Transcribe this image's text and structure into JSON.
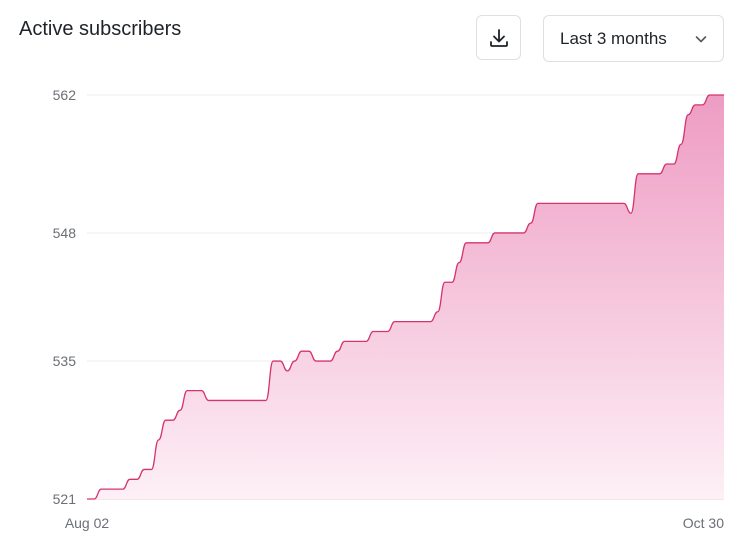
{
  "header": {
    "title": "Active subscribers",
    "download_icon": "download-icon",
    "range_select": {
      "value": "Last 3 months",
      "icon": "chevron-down-icon"
    }
  },
  "colors": {
    "line": "#d6336c",
    "fill_top": "#ee9cc3",
    "fill_bottom": "#fdf0f6",
    "grid": "#ececec",
    "tick": "#6b6f76"
  },
  "chart_data": {
    "type": "area",
    "title": "Active subscribers",
    "xlabel": "",
    "ylabel": "",
    "x_tick_labels": [
      "Aug 02",
      "Oct 30"
    ],
    "y_ticks": [
      521,
      535,
      548,
      562
    ],
    "ylim": [
      521,
      562
    ],
    "xlim": [
      "2023-08-02",
      "2023-10-30"
    ],
    "grid": true,
    "legend": "none",
    "series": [
      {
        "values": [
          {
            "x": "2023-08-02",
            "y": 521
          },
          {
            "x": "2023-08-03",
            "y": 521
          },
          {
            "x": "2023-08-04",
            "y": 522
          },
          {
            "x": "2023-08-05",
            "y": 522
          },
          {
            "x": "2023-08-06",
            "y": 522
          },
          {
            "x": "2023-08-07",
            "y": 522
          },
          {
            "x": "2023-08-08",
            "y": 523
          },
          {
            "x": "2023-08-09",
            "y": 523
          },
          {
            "x": "2023-08-10",
            "y": 524
          },
          {
            "x": "2023-08-11",
            "y": 524
          },
          {
            "x": "2023-08-12",
            "y": 527
          },
          {
            "x": "2023-08-13",
            "y": 529
          },
          {
            "x": "2023-08-14",
            "y": 529
          },
          {
            "x": "2023-08-15",
            "y": 530
          },
          {
            "x": "2023-08-16",
            "y": 532
          },
          {
            "x": "2023-08-17",
            "y": 532
          },
          {
            "x": "2023-08-18",
            "y": 532
          },
          {
            "x": "2023-08-19",
            "y": 531
          },
          {
            "x": "2023-08-20",
            "y": 531
          },
          {
            "x": "2023-08-21",
            "y": 531
          },
          {
            "x": "2023-08-22",
            "y": 531
          },
          {
            "x": "2023-08-23",
            "y": 531
          },
          {
            "x": "2023-08-24",
            "y": 531
          },
          {
            "x": "2023-08-25",
            "y": 531
          },
          {
            "x": "2023-08-26",
            "y": 531
          },
          {
            "x": "2023-08-27",
            "y": 531
          },
          {
            "x": "2023-08-28",
            "y": 535
          },
          {
            "x": "2023-08-29",
            "y": 535
          },
          {
            "x": "2023-08-30",
            "y": 534
          },
          {
            "x": "2023-08-31",
            "y": 535
          },
          {
            "x": "2023-09-01",
            "y": 536
          },
          {
            "x": "2023-09-02",
            "y": 536
          },
          {
            "x": "2023-09-03",
            "y": 535
          },
          {
            "x": "2023-09-04",
            "y": 535
          },
          {
            "x": "2023-09-05",
            "y": 535
          },
          {
            "x": "2023-09-06",
            "y": 536
          },
          {
            "x": "2023-09-07",
            "y": 537
          },
          {
            "x": "2023-09-08",
            "y": 537
          },
          {
            "x": "2023-09-09",
            "y": 537
          },
          {
            "x": "2023-09-10",
            "y": 537
          },
          {
            "x": "2023-09-11",
            "y": 538
          },
          {
            "x": "2023-09-12",
            "y": 538
          },
          {
            "x": "2023-09-13",
            "y": 538
          },
          {
            "x": "2023-09-14",
            "y": 539
          },
          {
            "x": "2023-09-15",
            "y": 539
          },
          {
            "x": "2023-09-16",
            "y": 539
          },
          {
            "x": "2023-09-17",
            "y": 539
          },
          {
            "x": "2023-09-18",
            "y": 539
          },
          {
            "x": "2023-09-19",
            "y": 539
          },
          {
            "x": "2023-09-20",
            "y": 540
          },
          {
            "x": "2023-09-21",
            "y": 543
          },
          {
            "x": "2023-09-22",
            "y": 543
          },
          {
            "x": "2023-09-23",
            "y": 545
          },
          {
            "x": "2023-09-24",
            "y": 547
          },
          {
            "x": "2023-09-25",
            "y": 547
          },
          {
            "x": "2023-09-26",
            "y": 547
          },
          {
            "x": "2023-09-27",
            "y": 547
          },
          {
            "x": "2023-09-28",
            "y": 548
          },
          {
            "x": "2023-09-29",
            "y": 548
          },
          {
            "x": "2023-09-30",
            "y": 548
          },
          {
            "x": "2023-10-01",
            "y": 548
          },
          {
            "x": "2023-10-02",
            "y": 548
          },
          {
            "x": "2023-10-03",
            "y": 549
          },
          {
            "x": "2023-10-04",
            "y": 551
          },
          {
            "x": "2023-10-05",
            "y": 551
          },
          {
            "x": "2023-10-06",
            "y": 551
          },
          {
            "x": "2023-10-07",
            "y": 551
          },
          {
            "x": "2023-10-08",
            "y": 551
          },
          {
            "x": "2023-10-09",
            "y": 551
          },
          {
            "x": "2023-10-10",
            "y": 551
          },
          {
            "x": "2023-10-11",
            "y": 551
          },
          {
            "x": "2023-10-12",
            "y": 551
          },
          {
            "x": "2023-10-13",
            "y": 551
          },
          {
            "x": "2023-10-14",
            "y": 551
          },
          {
            "x": "2023-10-15",
            "y": 551
          },
          {
            "x": "2023-10-16",
            "y": 551
          },
          {
            "x": "2023-10-17",
            "y": 550
          },
          {
            "x": "2023-10-18",
            "y": 554
          },
          {
            "x": "2023-10-19",
            "y": 554
          },
          {
            "x": "2023-10-20",
            "y": 554
          },
          {
            "x": "2023-10-21",
            "y": 554
          },
          {
            "x": "2023-10-22",
            "y": 555
          },
          {
            "x": "2023-10-23",
            "y": 555
          },
          {
            "x": "2023-10-24",
            "y": 557
          },
          {
            "x": "2023-10-25",
            "y": 560
          },
          {
            "x": "2023-10-26",
            "y": 561
          },
          {
            "x": "2023-10-27",
            "y": 561
          },
          {
            "x": "2023-10-28",
            "y": 562
          },
          {
            "x": "2023-10-29",
            "y": 562
          },
          {
            "x": "2023-10-30",
            "y": 562
          }
        ]
      }
    ]
  }
}
